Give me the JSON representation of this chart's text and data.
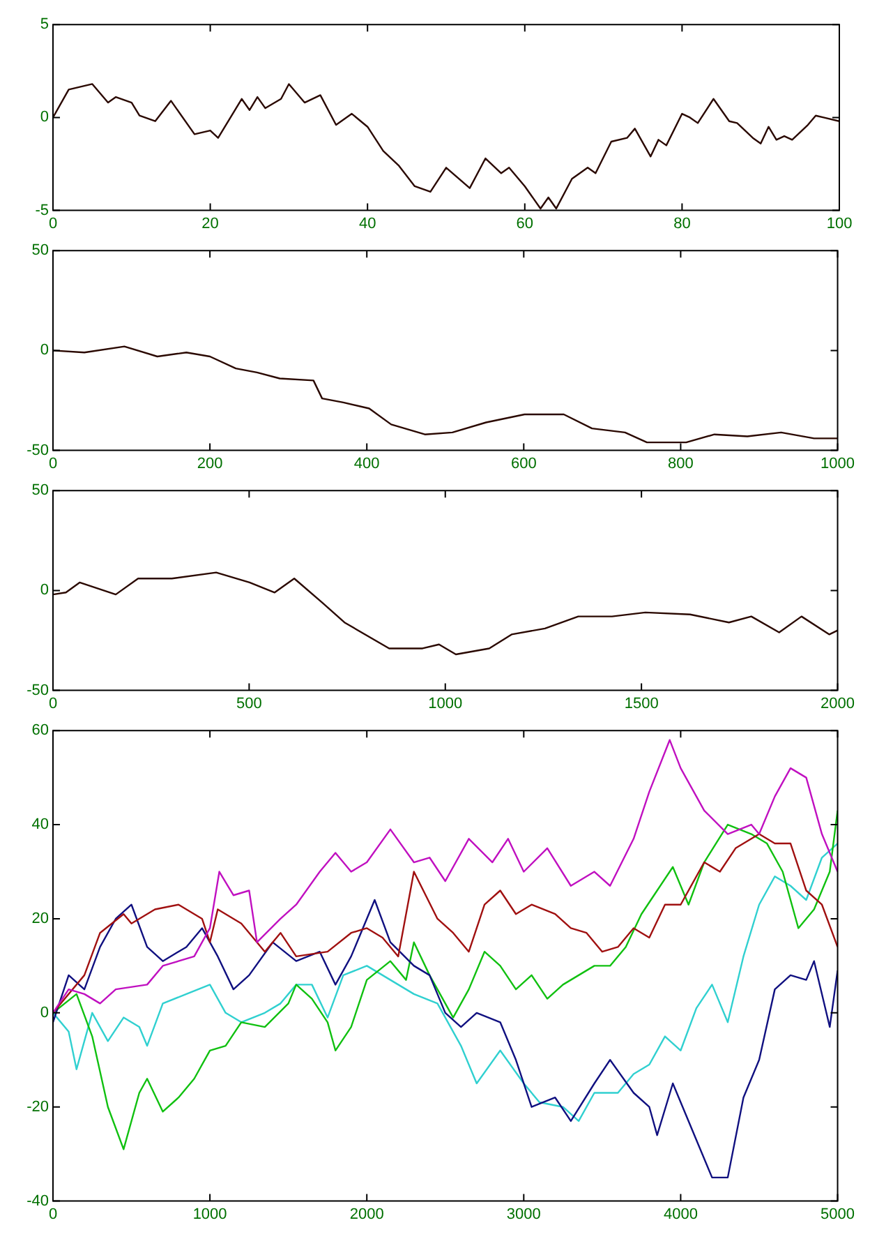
{
  "chart_data": [
    {
      "type": "line",
      "color": "#2a0800",
      "x": [
        0,
        2,
        5,
        7,
        8,
        10,
        11,
        13,
        15,
        18,
        20,
        21,
        24,
        25,
        26,
        27,
        29,
        30,
        32,
        34,
        36,
        38,
        40,
        42,
        44,
        46,
        48,
        50,
        53,
        55,
        57,
        58,
        60,
        62,
        63,
        64,
        66,
        68,
        69,
        71,
        73,
        74,
        76,
        77,
        78,
        80,
        81,
        82,
        84,
        86,
        87,
        89,
        90,
        91,
        92,
        93,
        94,
        96,
        97,
        98,
        100
      ],
      "values": [
        0,
        1.5,
        1.8,
        0.8,
        1.1,
        0.8,
        0.1,
        -0.2,
        0.9,
        -0.9,
        -0.7,
        -1.1,
        1.0,
        0.4,
        1.1,
        0.5,
        1.0,
        1.8,
        0.8,
        1.2,
        -0.4,
        0.2,
        -0.5,
        -1.8,
        -2.6,
        -3.7,
        -4.0,
        -2.7,
        -3.8,
        -2.2,
        -3.0,
        -2.7,
        -3.7,
        -4.9,
        -4.3,
        -4.9,
        -3.3,
        -2.7,
        -3.0,
        -1.3,
        -1.1,
        -0.6,
        -2.1,
        -1.2,
        -1.5,
        0.2,
        0.0,
        -0.3,
        1.0,
        -0.2,
        -0.3,
        -1.1,
        -1.4,
        -0.5,
        -1.2,
        -1.0,
        -1.2,
        -0.4,
        0.1,
        0.0,
        -0.2
      ],
      "xlim": [
        0,
        100
      ],
      "xticks": [
        0,
        20,
        40,
        60,
        80,
        100
      ],
      "ylim": [
        -5,
        5
      ],
      "yticks": [
        -5,
        0,
        5
      ]
    },
    {
      "type": "line",
      "color": "#2a0800",
      "x": [
        0,
        40,
        91,
        133,
        170,
        200,
        233,
        260,
        289,
        332,
        343,
        370,
        403,
        431,
        474,
        509,
        552,
        601,
        651,
        687,
        729,
        757,
        807,
        843,
        885,
        928,
        970,
        1000
      ],
      "values": [
        0,
        -1,
        2,
        -3,
        -1,
        -3,
        -9,
        -11,
        -14,
        -15,
        -24,
        -26,
        -29,
        -37,
        -42,
        -41,
        -36,
        -32,
        -32,
        -39,
        -41,
        -46,
        -46,
        -42,
        -43,
        -41,
        -44,
        -44
      ],
      "xlim": [
        0,
        1000
      ],
      "xticks": [
        0,
        200,
        400,
        600,
        800,
        1000
      ],
      "ylim": [
        -50,
        50
      ],
      "yticks": [
        -50,
        0,
        50
      ]
    },
    {
      "type": "line",
      "color": "#2a0800",
      "x": [
        0,
        33,
        68,
        160,
        217,
        303,
        416,
        501,
        565,
        615,
        686,
        743,
        857,
        942,
        984,
        1027,
        1112,
        1169,
        1254,
        1339,
        1425,
        1510,
        1624,
        1723,
        1780,
        1851,
        1908,
        1979,
        2000
      ],
      "values": [
        -2,
        -1,
        4,
        -2,
        6,
        6,
        9,
        4,
        -1,
        6,
        -6,
        -16,
        -29,
        -29,
        -27,
        -32,
        -29,
        -22,
        -19,
        -13,
        -13,
        -11,
        -12,
        -16,
        -13,
        -21,
        -13,
        -22,
        -20
      ],
      "xlim": [
        0,
        2000
      ],
      "xticks": [
        0,
        500,
        1000,
        1500,
        2000
      ],
      "ylim": [
        -50,
        50
      ],
      "yticks": [
        -50,
        0,
        50
      ]
    },
    {
      "type": "line",
      "xlim": [
        0,
        5000
      ],
      "xticks": [
        0,
        1000,
        2000,
        3000,
        4000,
        5000
      ],
      "ylim": [
        -40,
        60
      ],
      "yticks": [
        -40,
        -20,
        0,
        20,
        40,
        60
      ],
      "series": [
        {
          "color": "#c010c0",
          "x": [
            0,
            100,
            200,
            300,
            400,
            600,
            700,
            900,
            1000,
            1060,
            1150,
            1250,
            1300,
            1450,
            1550,
            1700,
            1800,
            1900,
            2000,
            2150,
            2300,
            2400,
            2500,
            2650,
            2800,
            2900,
            3000,
            3150,
            3300,
            3450,
            3550,
            3700,
            3800,
            3930,
            4000,
            4150,
            4300,
            4450,
            4500,
            4600,
            4700,
            4800,
            4900,
            5000
          ],
          "values": [
            0,
            5,
            4,
            2,
            5,
            6,
            10,
            12,
            18,
            30,
            25,
            26,
            15,
            20,
            23,
            30,
            34,
            30,
            32,
            39,
            32,
            33,
            28,
            37,
            32,
            37,
            30,
            35,
            27,
            30,
            27,
            37,
            47,
            58,
            52,
            43,
            38,
            40,
            38,
            46,
            52,
            50,
            38,
            30
          ]
        },
        {
          "color": "#a01010",
          "x": [
            0,
            200,
            300,
            450,
            500,
            650,
            800,
            950,
            1000,
            1050,
            1200,
            1350,
            1450,
            1550,
            1750,
            1900,
            2000,
            2100,
            2200,
            2300,
            2450,
            2550,
            2650,
            2750,
            2850,
            2950,
            3050,
            3200,
            3300,
            3400,
            3500,
            3600,
            3700,
            3800,
            3900,
            4000,
            4150,
            4250,
            4350,
            4500,
            4600,
            4700,
            4800,
            4900,
            5000
          ],
          "values": [
            0,
            8,
            17,
            21,
            19,
            22,
            23,
            20,
            15,
            22,
            19,
            13,
            17,
            12,
            13,
            17,
            18,
            16,
            12,
            30,
            20,
            17,
            13,
            23,
            26,
            21,
            23,
            21,
            18,
            17,
            13,
            14,
            18,
            16,
            23,
            23,
            32,
            30,
            35,
            38,
            36,
            36,
            26,
            23,
            14
          ]
        },
        {
          "color": "#101080",
          "x": [
            0,
            100,
            200,
            300,
            400,
            500,
            600,
            700,
            850,
            950,
            1050,
            1150,
            1250,
            1400,
            1550,
            1700,
            1800,
            1900,
            2000,
            2050,
            2150,
            2300,
            2400,
            2500,
            2600,
            2700,
            2850,
            2950,
            3050,
            3200,
            3300,
            3450,
            3550,
            3700,
            3800,
            3850,
            3950,
            4100,
            4200,
            4300,
            4400,
            4500,
            4600,
            4700,
            4800,
            4850,
            4950,
            5000
          ],
          "values": [
            -2,
            8,
            5,
            14,
            20,
            23,
            14,
            11,
            14,
            18,
            12,
            5,
            8,
            15,
            11,
            13,
            6,
            12,
            20,
            24,
            15,
            10,
            8,
            0,
            -3,
            0,
            -2,
            -10,
            -20,
            -18,
            -23,
            -15,
            -10,
            -17,
            -20,
            -26,
            -15,
            -27,
            -35,
            -35,
            -18,
            -10,
            5,
            8,
            7,
            11,
            -3,
            9
          ]
        },
        {
          "color": "#10c010",
          "x": [
            0,
            150,
            250,
            350,
            450,
            550,
            600,
            700,
            800,
            900,
            1000,
            1100,
            1200,
            1350,
            1500,
            1550,
            1650,
            1750,
            1800,
            1900,
            2000,
            2150,
            2250,
            2300,
            2400,
            2550,
            2650,
            2750,
            2850,
            2950,
            3050,
            3150,
            3250,
            3350,
            3450,
            3550,
            3650,
            3750,
            3850,
            3950,
            4050,
            4150,
            4300,
            4450,
            4550,
            4650,
            4750,
            4850,
            4950,
            5000
          ],
          "values": [
            0,
            4,
            -5,
            -20,
            -29,
            -17,
            -14,
            -21,
            -18,
            -14,
            -8,
            -7,
            -2,
            -3,
            2,
            6,
            3,
            -2,
            -8,
            -3,
            7,
            11,
            7,
            15,
            8,
            -1,
            5,
            13,
            10,
            5,
            8,
            3,
            6,
            8,
            10,
            10,
            14,
            21,
            26,
            31,
            23,
            32,
            40,
            38,
            36,
            30,
            18,
            22,
            30,
            43
          ]
        },
        {
          "color": "#30d0d0",
          "x": [
            0,
            100,
            150,
            250,
            350,
            450,
            550,
            600,
            700,
            850,
            1000,
            1100,
            1200,
            1350,
            1450,
            1550,
            1650,
            1750,
            1850,
            2000,
            2150,
            2300,
            2450,
            2600,
            2700,
            2850,
            3000,
            3100,
            3250,
            3350,
            3450,
            3600,
            3700,
            3800,
            3900,
            4000,
            4100,
            4200,
            4300,
            4400,
            4500,
            4600,
            4700,
            4800,
            4900,
            5000
          ],
          "values": [
            0,
            -4,
            -12,
            0,
            -6,
            -1,
            -3,
            -7,
            2,
            4,
            6,
            0,
            -2,
            0,
            2,
            6,
            6,
            -1,
            8,
            10,
            7,
            4,
            2,
            -7,
            -15,
            -8,
            -15,
            -19,
            -20,
            -23,
            -17,
            -17,
            -13,
            -11,
            -5,
            -8,
            1,
            6,
            -2,
            12,
            23,
            29,
            27,
            24,
            33,
            36
          ]
        }
      ]
    }
  ]
}
